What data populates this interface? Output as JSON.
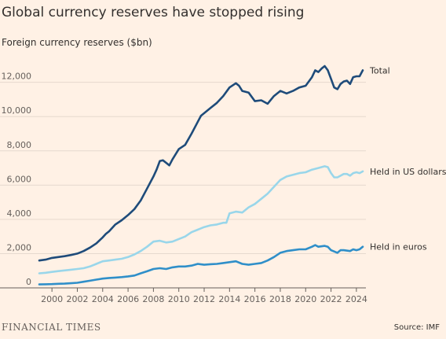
{
  "title": "Global currency reserves have stopped rising",
  "subtitle": "Foreign currency reserves ($bn)",
  "footer": {
    "logo": "FINANCIAL TIMES",
    "source": "Source: IMF"
  },
  "chart_data": {
    "type": "line",
    "xlim": [
      1999,
      2024.75
    ],
    "ylim": [
      0,
      13500
    ],
    "x_ticks": [
      2000,
      2002,
      2004,
      2006,
      2008,
      2010,
      2012,
      2014,
      2016,
      2018,
      2020,
      2022,
      2024
    ],
    "x_tick_labels": [
      "2000",
      "2002",
      "2004",
      "2006",
      "2008",
      "2010",
      "2012",
      "2014",
      "2016",
      "2018",
      "2020",
      "2022",
      "2024"
    ],
    "y_ticks": [
      0,
      2000,
      4000,
      6000,
      8000,
      10000,
      12000
    ],
    "y_tick_labels": [
      "0",
      "2,000",
      "4,000",
      "6,000",
      "8,000",
      "10,000",
      "12,000"
    ],
    "grid": true,
    "series": [
      {
        "name": "Total",
        "color": "#1e4b7a",
        "points": [
          [
            1999,
            1600
          ],
          [
            1999.5,
            1650
          ],
          [
            2000,
            1750
          ],
          [
            2000.5,
            1800
          ],
          [
            2001,
            1850
          ],
          [
            2001.5,
            1920
          ],
          [
            2002,
            2000
          ],
          [
            2002.5,
            2150
          ],
          [
            2003,
            2350
          ],
          [
            2003.5,
            2600
          ],
          [
            2004,
            2950
          ],
          [
            2004.25,
            3150
          ],
          [
            2004.5,
            3300
          ],
          [
            2005,
            3700
          ],
          [
            2005.5,
            3950
          ],
          [
            2006,
            4250
          ],
          [
            2006.5,
            4600
          ],
          [
            2007,
            5100
          ],
          [
            2007.5,
            5800
          ],
          [
            2008,
            6500
          ],
          [
            2008.25,
            6900
          ],
          [
            2008.5,
            7400
          ],
          [
            2008.75,
            7450
          ],
          [
            2009,
            7300
          ],
          [
            2009.25,
            7150
          ],
          [
            2009.5,
            7500
          ],
          [
            2010,
            8100
          ],
          [
            2010.5,
            8350
          ],
          [
            2011,
            9000
          ],
          [
            2011.5,
            9700
          ],
          [
            2011.75,
            10050
          ],
          [
            2012,
            10200
          ],
          [
            2012.5,
            10500
          ],
          [
            2013,
            10800
          ],
          [
            2013.5,
            11200
          ],
          [
            2014,
            11700
          ],
          [
            2014.5,
            11950
          ],
          [
            2014.75,
            11800
          ],
          [
            2015,
            11500
          ],
          [
            2015.5,
            11400
          ],
          [
            2016,
            10900
          ],
          [
            2016.5,
            10950
          ],
          [
            2017,
            10750
          ],
          [
            2017.5,
            11200
          ],
          [
            2018,
            11500
          ],
          [
            2018.5,
            11350
          ],
          [
            2019,
            11500
          ],
          [
            2019.5,
            11700
          ],
          [
            2020,
            11800
          ],
          [
            2020.5,
            12300
          ],
          [
            2020.75,
            12700
          ],
          [
            2021,
            12600
          ],
          [
            2021.25,
            12800
          ],
          [
            2021.5,
            12950
          ],
          [
            2021.75,
            12700
          ],
          [
            2022,
            12200
          ],
          [
            2022.25,
            11700
          ],
          [
            2022.5,
            11600
          ],
          [
            2022.75,
            11900
          ],
          [
            2023,
            12050
          ],
          [
            2023.25,
            12100
          ],
          [
            2023.5,
            11900
          ],
          [
            2023.75,
            12300
          ],
          [
            2024,
            12350
          ],
          [
            2024.25,
            12350
          ],
          [
            2024.5,
            12700
          ]
        ]
      },
      {
        "name": "Held in US dollars",
        "color": "#99d6ea",
        "points": [
          [
            1999,
            850
          ],
          [
            1999.5,
            880
          ],
          [
            2000,
            930
          ],
          [
            2000.5,
            980
          ],
          [
            2001,
            1020
          ],
          [
            2001.5,
            1060
          ],
          [
            2002,
            1100
          ],
          [
            2002.5,
            1150
          ],
          [
            2003,
            1250
          ],
          [
            2003.5,
            1400
          ],
          [
            2004,
            1550
          ],
          [
            2004.5,
            1600
          ],
          [
            2005,
            1650
          ],
          [
            2005.5,
            1700
          ],
          [
            2006,
            1800
          ],
          [
            2006.5,
            1950
          ],
          [
            2007,
            2150
          ],
          [
            2007.5,
            2400
          ],
          [
            2008,
            2700
          ],
          [
            2008.5,
            2750
          ],
          [
            2009,
            2650
          ],
          [
            2009.5,
            2700
          ],
          [
            2010,
            2850
          ],
          [
            2010.5,
            3000
          ],
          [
            2011,
            3250
          ],
          [
            2011.5,
            3400
          ],
          [
            2012,
            3550
          ],
          [
            2012.5,
            3650
          ],
          [
            2013,
            3700
          ],
          [
            2013.5,
            3800
          ],
          [
            2013.75,
            3800
          ],
          [
            2014,
            4350
          ],
          [
            2014.5,
            4450
          ],
          [
            2015,
            4400
          ],
          [
            2015.5,
            4700
          ],
          [
            2016,
            4900
          ],
          [
            2016.5,
            5200
          ],
          [
            2017,
            5500
          ],
          [
            2017.5,
            5900
          ],
          [
            2018,
            6300
          ],
          [
            2018.5,
            6500
          ],
          [
            2019,
            6600
          ],
          [
            2019.5,
            6700
          ],
          [
            2020,
            6750
          ],
          [
            2020.5,
            6900
          ],
          [
            2021,
            7000
          ],
          [
            2021.5,
            7100
          ],
          [
            2021.75,
            7050
          ],
          [
            2022,
            6700
          ],
          [
            2022.25,
            6450
          ],
          [
            2022.5,
            6450
          ],
          [
            2022.75,
            6550
          ],
          [
            2023,
            6650
          ],
          [
            2023.25,
            6650
          ],
          [
            2023.5,
            6550
          ],
          [
            2023.75,
            6700
          ],
          [
            2024,
            6750
          ],
          [
            2024.25,
            6700
          ],
          [
            2024.5,
            6800
          ]
        ]
      },
      {
        "name": "Held in euros",
        "color": "#2f8fc9",
        "points": [
          [
            1999,
            200
          ],
          [
            1999.5,
            210
          ],
          [
            2000,
            220
          ],
          [
            2000.5,
            240
          ],
          [
            2001,
            250
          ],
          [
            2001.5,
            270
          ],
          [
            2002,
            300
          ],
          [
            2002.5,
            360
          ],
          [
            2003,
            420
          ],
          [
            2003.5,
            480
          ],
          [
            2004,
            540
          ],
          [
            2004.5,
            580
          ],
          [
            2005,
            600
          ],
          [
            2005.5,
            630
          ],
          [
            2006,
            670
          ],
          [
            2006.5,
            720
          ],
          [
            2007,
            850
          ],
          [
            2007.5,
            970
          ],
          [
            2008,
            1100
          ],
          [
            2008.5,
            1150
          ],
          [
            2009,
            1100
          ],
          [
            2009.5,
            1200
          ],
          [
            2010,
            1250
          ],
          [
            2010.5,
            1250
          ],
          [
            2011,
            1300
          ],
          [
            2011.5,
            1400
          ],
          [
            2012,
            1350
          ],
          [
            2012.5,
            1380
          ],
          [
            2013,
            1400
          ],
          [
            2013.5,
            1450
          ],
          [
            2014,
            1500
          ],
          [
            2014.5,
            1550
          ],
          [
            2015,
            1400
          ],
          [
            2015.5,
            1350
          ],
          [
            2016,
            1400
          ],
          [
            2016.5,
            1450
          ],
          [
            2017,
            1600
          ],
          [
            2017.5,
            1800
          ],
          [
            2018,
            2050
          ],
          [
            2018.5,
            2150
          ],
          [
            2019,
            2200
          ],
          [
            2019.5,
            2250
          ],
          [
            2020,
            2250
          ],
          [
            2020.5,
            2400
          ],
          [
            2020.75,
            2500
          ],
          [
            2021,
            2400
          ],
          [
            2021.5,
            2450
          ],
          [
            2021.75,
            2400
          ],
          [
            2022,
            2200
          ],
          [
            2022.5,
            2050
          ],
          [
            2022.75,
            2200
          ],
          [
            2023,
            2200
          ],
          [
            2023.5,
            2150
          ],
          [
            2023.75,
            2250
          ],
          [
            2024,
            2200
          ],
          [
            2024.25,
            2250
          ],
          [
            2024.5,
            2400
          ]
        ]
      }
    ],
    "series_label_positions": [
      "end",
      "end",
      "end"
    ]
  }
}
